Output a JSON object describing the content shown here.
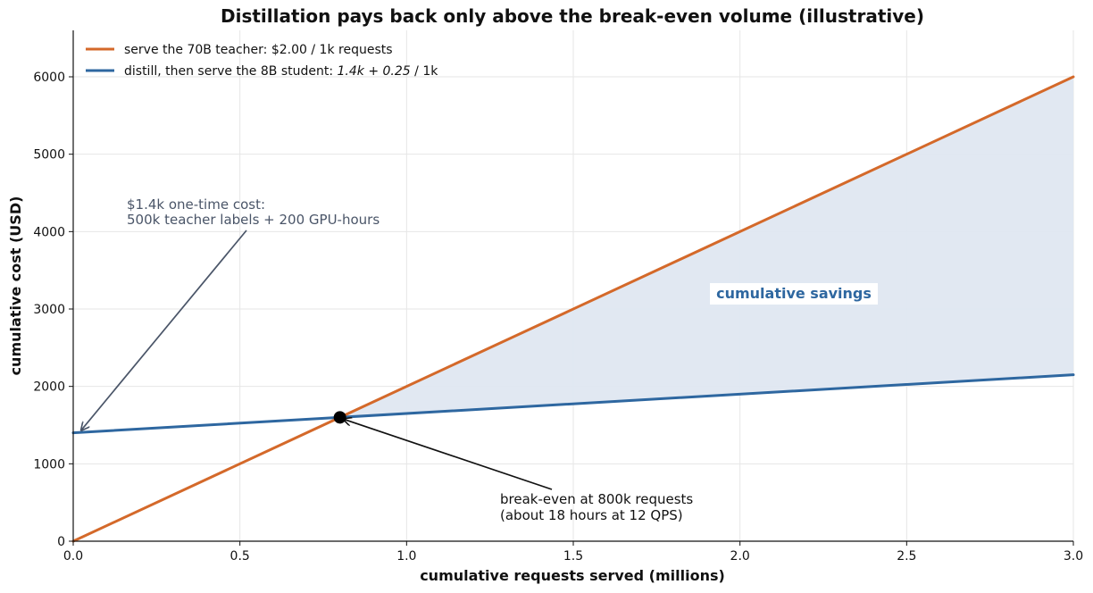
{
  "chart_data": {
    "type": "line",
    "title": "Distillation pays back only above the break-even volume (illustrative)",
    "xlabel": "cumulative requests served (millions)",
    "ylabel": "cumulative cost (USD)",
    "xlim": [
      0,
      3.0
    ],
    "ylim": [
      0,
      6600
    ],
    "x_ticks": [
      0,
      0.5,
      1.0,
      1.5,
      2.0,
      2.5,
      3.0
    ],
    "x_tick_labels": [
      "0.0",
      "0.5",
      "1.0",
      "1.5",
      "2.0",
      "2.5",
      "3.0"
    ],
    "y_ticks": [
      0,
      1000,
      2000,
      3000,
      4000,
      5000,
      6000
    ],
    "y_tick_labels": [
      "0",
      "1000",
      "2000",
      "3000",
      "4000",
      "5000",
      "6000"
    ],
    "grid": true,
    "legend_position": "top-left",
    "series": [
      {
        "name": "serve the 70B teacher: $2.00 / 1k requests",
        "color": "#d4692a",
        "x": [
          0,
          3.0
        ],
        "y": [
          0,
          6000
        ]
      },
      {
        "name_prefix": "distill, then serve the 8B student: ",
        "name_math": "1.4k + 0.25",
        "name_suffix": " / 1k",
        "color": "#2e67a0",
        "x": [
          0,
          3.0
        ],
        "y": [
          1400,
          2150
        ]
      }
    ],
    "fill_between": {
      "label": "cumulative savings",
      "fill_color": "#dfe7f1",
      "label_color": "#2e67a0",
      "x_from": 0.8,
      "x_to": 3.0
    },
    "break_even": {
      "x": 0.8,
      "y": 1600,
      "label_line1": "break-even at 800k requests",
      "label_line2": "(about 18 hours at 12 QPS)"
    },
    "one_time_cost": {
      "x": 0,
      "y": 1400,
      "label_line1": "$1.4k one-time cost:",
      "label_line2": "500k teacher labels + 200 GPU-hours",
      "color": "#4a5568"
    },
    "grid_color": "#e6e6e6",
    "axis_color": "#111111"
  }
}
